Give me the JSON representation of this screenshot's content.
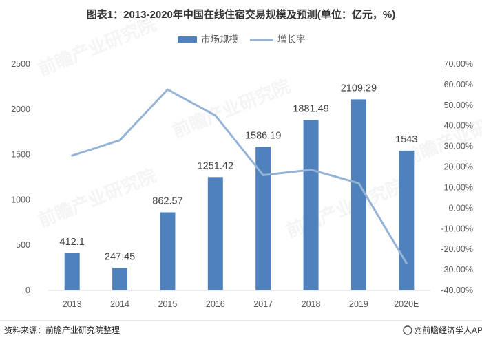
{
  "chart_data": {
    "type": "bar",
    "title": "图表1：2013-2020年中国在线住宿交易规模及预测(单位：亿元，%)",
    "categories": [
      "2013",
      "2014",
      "2015",
      "2016",
      "2017",
      "2018",
      "2019",
      "2020E"
    ],
    "series": [
      {
        "name": "市场规模",
        "type": "bar",
        "axis": "left",
        "color": "#4f81bd",
        "values": [
          412.1,
          247.45,
          862.57,
          1251.42,
          1586.19,
          1881.49,
          2109.29,
          1543
        ],
        "labels": [
          "412.1",
          "247.45",
          "862.57",
          "1251.42",
          "1586.19",
          "1881.49",
          "2109.29",
          "1543"
        ]
      },
      {
        "name": "增长率",
        "type": "line",
        "axis": "right",
        "color": "#95b3d7",
        "values": [
          25.5,
          33.0,
          57.6,
          45.0,
          16.0,
          18.6,
          12.1,
          -26.8
        ]
      }
    ],
    "ylim_left": [
      0,
      2500
    ],
    "yticks_left": [
      "0",
      "500",
      "1000",
      "1500",
      "2000",
      "2500"
    ],
    "ylim_right": [
      -40,
      70
    ],
    "yticks_right": [
      "-40.00%",
      "-30.00%",
      "-20.00%",
      "-10.00%",
      "0.00%",
      "10.00%",
      "20.00%",
      "30.00%",
      "40.00%",
      "50.00%",
      "60.00%",
      "70.00%"
    ],
    "legend_position": "top-center",
    "grid": false
  },
  "source": "资料来源：前瞻产业研究院整理",
  "brand": "@前瞻经济学人APP",
  "watermark": "前瞻产业研究院",
  "colors": {
    "bar": "#4f81bd",
    "line": "#95b3d7",
    "axis": "#d9d9d9"
  }
}
